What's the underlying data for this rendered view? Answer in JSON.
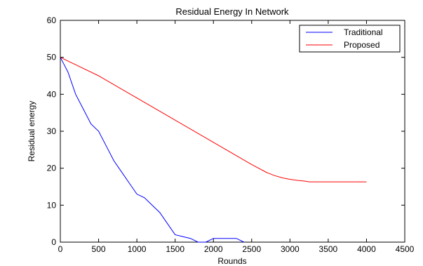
{
  "chart_data": {
    "type": "line",
    "title": "Residual Energy In Network",
    "xlabel": "Rounds",
    "ylabel": "Residual energy",
    "xlim": [
      0,
      4500
    ],
    "ylim": [
      0,
      60
    ],
    "xticks": [
      0,
      500,
      1000,
      1500,
      2000,
      2500,
      3000,
      3500,
      4000,
      4500
    ],
    "yticks": [
      0,
      10,
      20,
      30,
      40,
      50,
      60
    ],
    "grid": false,
    "legend_position": "top-right",
    "series": [
      {
        "name": "Traditional",
        "color": "#0000ff",
        "x": [
          0,
          50,
          100,
          200,
          300,
          400,
          500,
          600,
          700,
          800,
          900,
          1000,
          1100,
          1200,
          1300,
          1400,
          1500,
          1600,
          1700,
          1800,
          1900,
          2000,
          2100,
          2200,
          2300,
          2400
        ],
        "y": [
          50,
          48,
          46,
          40,
          36,
          32,
          30,
          26,
          22,
          19,
          16,
          13,
          12,
          10,
          8,
          5,
          2,
          1.5,
          1,
          0,
          0,
          1,
          1,
          1,
          1,
          0
        ]
      },
      {
        "name": "Proposed",
        "color": "#ff0000",
        "x": [
          0,
          500,
          1000,
          1500,
          2000,
          2500,
          2700,
          2800,
          2900,
          3000,
          3100,
          3200,
          3250,
          3500,
          4000
        ],
        "y": [
          50,
          45,
          39,
          33,
          27,
          21,
          18.8,
          18,
          17.4,
          17,
          16.7,
          16.5,
          16.3,
          16.3,
          16.3
        ]
      }
    ]
  }
}
